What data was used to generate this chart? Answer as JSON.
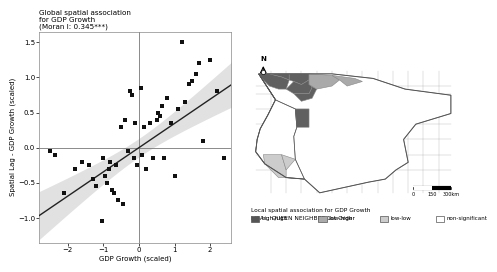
{
  "title_left": "Global spatial association\nfor GDP Growth\n(Moran I: 0.345***)",
  "xlabel": "GDP Growth (scaled)",
  "ylabel": "Spatial Lag - GDP Growth (scaled)",
  "xlim": [
    -2.8,
    2.6
  ],
  "ylim": [
    -1.35,
    1.65
  ],
  "xticks": [
    -2,
    -1,
    0,
    1,
    2
  ],
  "yticks": [
    -1.0,
    -0.5,
    0.0,
    0.5,
    1.0,
    1.5
  ],
  "scatter_x": [
    -2.5,
    -2.35,
    -2.1,
    -1.8,
    -1.6,
    -1.4,
    -1.3,
    -1.2,
    -1.05,
    -1.0,
    -0.95,
    -0.9,
    -0.85,
    -0.8,
    -0.75,
    -0.7,
    -0.65,
    -0.6,
    -0.5,
    -0.45,
    -0.4,
    -0.3,
    -0.25,
    -0.2,
    -0.15,
    -0.1,
    -0.05,
    0.05,
    0.1,
    0.15,
    0.2,
    0.3,
    0.4,
    0.5,
    0.55,
    0.6,
    0.65,
    0.7,
    0.8,
    0.9,
    1.0,
    1.1,
    1.2,
    1.3,
    1.4,
    1.5,
    1.6,
    1.7,
    1.8,
    2.0,
    2.2,
    2.4
  ],
  "scatter_y": [
    -0.05,
    -0.1,
    -0.65,
    -0.3,
    -0.2,
    -0.25,
    -0.45,
    -0.55,
    -1.05,
    -0.15,
    -0.4,
    -0.5,
    -0.3,
    -0.2,
    -0.6,
    -0.65,
    -0.25,
    -0.75,
    0.3,
    -0.8,
    0.4,
    -0.05,
    0.8,
    0.75,
    -0.15,
    0.35,
    -0.25,
    0.85,
    -0.1,
    0.3,
    -0.3,
    0.35,
    -0.15,
    0.4,
    0.5,
    0.45,
    0.6,
    -0.15,
    0.7,
    0.35,
    -0.4,
    0.55,
    1.5,
    0.65,
    0.9,
    0.95,
    1.05,
    1.2,
    0.1,
    1.25,
    0.8,
    -0.15
  ],
  "moran_slope": 0.345,
  "ci_alpha": 0.35,
  "ci_color": "#aaaaaa",
  "line_color": "#222222",
  "dot_color": "#111111",
  "dot_size": 5,
  "background_color": "#ffffff",
  "legend_title_line1": "Local spatial association for GDP Growth",
  "legend_title_line2": "LISA :: QUEEN NEIGHBRS 1st Order",
  "legend_entries": [
    "high-high",
    "low-high",
    "low-low",
    "non-significant"
  ],
  "legend_colors": [
    "#555555",
    "#aaaaaa",
    "#cccccc",
    "#ffffff"
  ],
  "map_edge_color": "#888888",
  "map_edge_width": 0.5
}
